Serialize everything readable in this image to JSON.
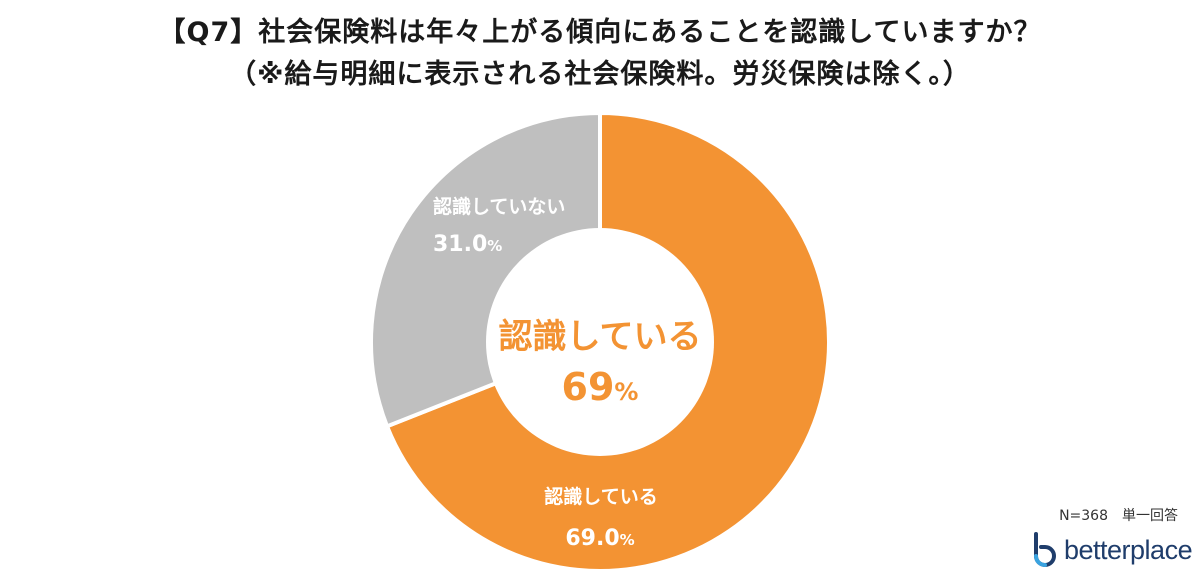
{
  "title": {
    "line1": "【Q7】社会保険料は年々上がる傾向にあることを認識していますか？",
    "line2": "（※給与明細に表示される社会保険料。労災保険は除く。）"
  },
  "chart_data": {
    "type": "pie",
    "variant": "donut",
    "slices": [
      {
        "label": "認識している",
        "value": 69.0,
        "value_text": "69.0",
        "unit": "%",
        "color": "#f39333"
      },
      {
        "label": "認識していない",
        "value": 31.0,
        "value_text": "31.0",
        "unit": "%",
        "color": "#bfbfbf"
      }
    ],
    "center": {
      "label": "認識している",
      "value_text": "69",
      "unit": "%",
      "color": "#f39333"
    }
  },
  "footnote": "N=368　単一回答",
  "logo": {
    "text": "betterplace",
    "color": "#1f3d6b",
    "accent": "#3aa3e0"
  }
}
